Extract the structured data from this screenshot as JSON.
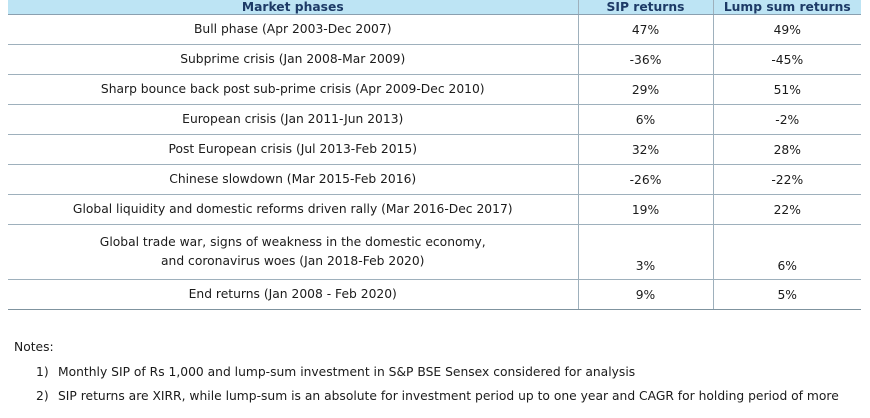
{
  "table": {
    "headers": [
      "Market phases",
      "SIP returns",
      "Lump sum returns"
    ],
    "rows": [
      {
        "phase": "Bull phase (Apr 2003-Dec 2007)",
        "sip": "47%",
        "lump": "49%"
      },
      {
        "phase": "Subprime crisis (Jan 2008-Mar 2009)",
        "sip": "-36%",
        "lump": "-45%"
      },
      {
        "phase": "Sharp bounce back post sub-prime crisis (Apr 2009-Dec 2010)",
        "sip": "29%",
        "lump": "51%"
      },
      {
        "phase": "European crisis (Jan 2011-Jun 2013)",
        "sip": "6%",
        "lump": "-2%"
      },
      {
        "phase": "Post European crisis (Jul 2013-Feb 2015)",
        "sip": "32%",
        "lump": "28%"
      },
      {
        "phase": "Chinese slowdown (Mar 2015-Feb 2016)",
        "sip": "-26%",
        "lump": "-22%"
      },
      {
        "phase": "Global liquidity and domestic reforms driven rally (Mar 2016-Dec 2017)",
        "sip": "19%",
        "lump": "22%"
      },
      {
        "phase_line1": "Global trade war, signs of weakness in the domestic economy,",
        "phase_line2": "and coronavirus woes (Jan 2018-Feb 2020)",
        "sip": "3%",
        "lump": "6%"
      },
      {
        "phase": "End returns (Jan 2008 - Feb 2020)",
        "sip": "9%",
        "lump": "5%"
      }
    ]
  },
  "notes": {
    "title": "Notes:",
    "items": [
      {
        "num": "1)",
        "text": "Monthly SIP of Rs 1,000 and lump-sum investment in S&P BSE Sensex considered for analysis"
      },
      {
        "num": "2)",
        "text": "SIP returns are XIRR, while lump-sum is an absolute for investment period up to one year and CAGR for holding period of more"
      }
    ]
  },
  "colors": {
    "header_bg": "#bde4f4",
    "header_text": "#1d3a66",
    "rule": "#9eb0bc"
  }
}
